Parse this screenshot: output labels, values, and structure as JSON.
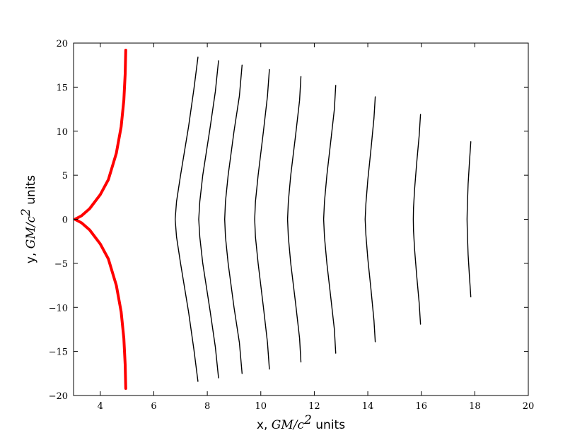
{
  "chart_data": {
    "type": "line",
    "title": "",
    "xlabel": {
      "prefix": "x, ",
      "math_base": "GM/c",
      "math_sup": "2",
      "suffix": " units"
    },
    "ylabel": {
      "prefix": "y, ",
      "math_base": "GM/c",
      "math_sup": "2",
      "suffix": " units"
    },
    "xlim": [
      3,
      20
    ],
    "ylim": [
      -20,
      20
    ],
    "xticks": [
      4,
      6,
      8,
      10,
      12,
      14,
      16,
      18,
      20
    ],
    "yticks": [
      -20,
      -15,
      -10,
      -5,
      0,
      5,
      10,
      15,
      20
    ],
    "xtick_labels": [
      "4",
      "6",
      "8",
      "10",
      "12",
      "14",
      "16",
      "18",
      "20"
    ],
    "ytick_labels": [
      "−20",
      "−15",
      "−10",
      "−5",
      "0",
      "5",
      "10",
      "15",
      "20"
    ],
    "grid": false,
    "legend": false,
    "series": [
      {
        "color": "#ff0000",
        "points": [
          [
            4.95,
            19.2
          ],
          [
            4.93,
            16.5
          ],
          [
            4.88,
            13.5
          ],
          [
            4.78,
            10.5
          ],
          [
            4.6,
            7.5
          ],
          [
            4.3,
            4.5
          ],
          [
            4.0,
            2.8
          ],
          [
            3.6,
            1.2
          ],
          [
            3.3,
            0.4
          ],
          [
            3.05,
            0.0
          ],
          [
            3.3,
            -0.4
          ],
          [
            3.6,
            -1.2
          ],
          [
            4.0,
            -2.8
          ],
          [
            4.3,
            -4.5
          ],
          [
            4.6,
            -7.5
          ],
          [
            4.78,
            -10.5
          ],
          [
            4.88,
            -13.5
          ],
          [
            4.93,
            -16.5
          ],
          [
            4.95,
            -19.2
          ]
        ]
      },
      {
        "color": "#000000",
        "points": [
          [
            7.65,
            18.4
          ],
          [
            7.5,
            14.8
          ],
          [
            7.3,
            10.5
          ],
          [
            7.0,
            5.0
          ],
          [
            6.85,
            2.0
          ],
          [
            6.8,
            0.0
          ],
          [
            6.85,
            -2.0
          ],
          [
            7.0,
            -5.0
          ],
          [
            7.3,
            -10.5
          ],
          [
            7.5,
            -14.8
          ],
          [
            7.65,
            -18.4
          ]
        ]
      },
      {
        "color": "#000000",
        "points": [
          [
            8.42,
            18.0
          ],
          [
            8.3,
            14.5
          ],
          [
            8.1,
            10.3
          ],
          [
            7.83,
            5.0
          ],
          [
            7.72,
            2.0
          ],
          [
            7.68,
            0.0
          ],
          [
            7.72,
            -2.0
          ],
          [
            7.83,
            -5.0
          ],
          [
            8.1,
            -10.3
          ],
          [
            8.3,
            -14.5
          ],
          [
            8.42,
            -18.0
          ]
        ]
      },
      {
        "color": "#000000",
        "points": [
          [
            9.3,
            17.5
          ],
          [
            9.2,
            14.0
          ],
          [
            9.0,
            10.0
          ],
          [
            8.78,
            5.0
          ],
          [
            8.68,
            2.0
          ],
          [
            8.65,
            0.0
          ],
          [
            8.68,
            -2.0
          ],
          [
            8.78,
            -5.0
          ],
          [
            9.0,
            -10.0
          ],
          [
            9.2,
            -14.0
          ],
          [
            9.3,
            -17.5
          ]
        ]
      },
      {
        "color": "#000000",
        "points": [
          [
            10.32,
            17.0
          ],
          [
            10.25,
            14.0
          ],
          [
            10.1,
            10.0
          ],
          [
            9.9,
            5.0
          ],
          [
            9.8,
            2.0
          ],
          [
            9.77,
            0.0
          ],
          [
            9.8,
            -2.0
          ],
          [
            9.9,
            -5.0
          ],
          [
            10.1,
            -10.0
          ],
          [
            10.25,
            -14.0
          ],
          [
            10.32,
            -17.0
          ]
        ]
      },
      {
        "color": "#000000",
        "points": [
          [
            11.5,
            16.2
          ],
          [
            11.45,
            13.5
          ],
          [
            11.3,
            9.5
          ],
          [
            11.12,
            5.0
          ],
          [
            11.03,
            2.0
          ],
          [
            11.0,
            0.0
          ],
          [
            11.03,
            -2.0
          ],
          [
            11.12,
            -5.0
          ],
          [
            11.3,
            -9.5
          ],
          [
            11.45,
            -13.5
          ],
          [
            11.5,
            -16.2
          ]
        ]
      },
      {
        "color": "#000000",
        "points": [
          [
            12.8,
            15.2
          ],
          [
            12.75,
            12.5
          ],
          [
            12.62,
            9.0
          ],
          [
            12.47,
            5.0
          ],
          [
            12.38,
            2.0
          ],
          [
            12.35,
            0.0
          ],
          [
            12.38,
            -2.0
          ],
          [
            12.47,
            -5.0
          ],
          [
            12.62,
            -9.0
          ],
          [
            12.75,
            -12.5
          ],
          [
            12.8,
            -15.2
          ]
        ]
      },
      {
        "color": "#000000",
        "points": [
          [
            14.28,
            13.9
          ],
          [
            14.23,
            11.5
          ],
          [
            14.12,
            8.0
          ],
          [
            14.0,
            4.5
          ],
          [
            13.93,
            1.8
          ],
          [
            13.9,
            0.0
          ],
          [
            13.93,
            -1.8
          ],
          [
            14.0,
            -4.5
          ],
          [
            14.12,
            -8.0
          ],
          [
            14.23,
            -11.5
          ],
          [
            14.28,
            -13.9
          ]
        ]
      },
      {
        "color": "#000000",
        "points": [
          [
            15.97,
            11.9
          ],
          [
            15.92,
            9.5
          ],
          [
            15.83,
            6.5
          ],
          [
            15.75,
            3.5
          ],
          [
            15.71,
            1.3
          ],
          [
            15.7,
            0.0
          ],
          [
            15.71,
            -1.3
          ],
          [
            15.75,
            -3.5
          ],
          [
            15.83,
            -6.5
          ],
          [
            15.92,
            -9.5
          ],
          [
            15.97,
            -11.9
          ]
        ]
      },
      {
        "color": "#000000",
        "points": [
          [
            17.85,
            8.8
          ],
          [
            17.8,
            6.5
          ],
          [
            17.75,
            4.0
          ],
          [
            17.72,
            1.5
          ],
          [
            17.71,
            0.0
          ],
          [
            17.72,
            -1.5
          ],
          [
            17.75,
            -4.0
          ],
          [
            17.8,
            -6.5
          ],
          [
            17.85,
            -8.8
          ]
        ]
      }
    ]
  }
}
